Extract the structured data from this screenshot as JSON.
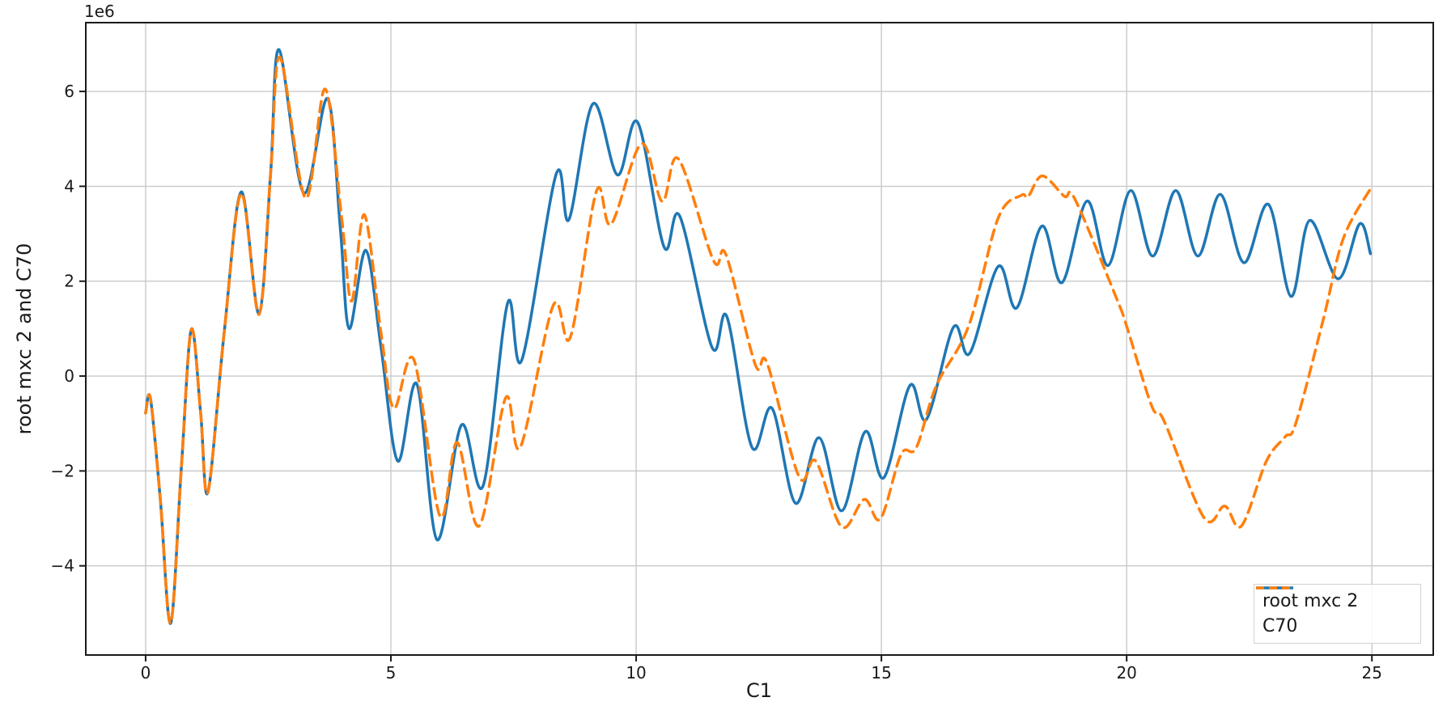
{
  "figure": {
    "background": "#ffffff",
    "text_color": "#1a1a1a",
    "grid_color": "#c9c9c9",
    "spine_color": "#1a1a1a"
  },
  "chart_data": {
    "type": "line",
    "title": "",
    "xlabel": "C1",
    "ylabel": "root mxc 2 and C70",
    "y_offset_label": "1e6",
    "y_scale": 1000000,
    "xlim": [
      -1.22,
      26.25
    ],
    "ylim": [
      -5.88,
      7.45
    ],
    "x_ticks": [
      0,
      5,
      10,
      15,
      20,
      25
    ],
    "y_ticks": [
      -4,
      -2,
      0,
      2,
      4,
      6
    ],
    "grid": true,
    "legend_position": "lower right",
    "series": [
      {
        "name": "root mxc 2",
        "color": "#1f77b4",
        "style": "solid",
        "points": [
          [
            0.0,
            -0.78
          ],
          [
            0.1,
            -0.48
          ],
          [
            0.3,
            -2.6
          ],
          [
            0.51,
            -5.21
          ],
          [
            0.73,
            -1.9
          ],
          [
            0.93,
            0.98
          ],
          [
            1.12,
            -0.75
          ],
          [
            1.27,
            -2.45
          ],
          [
            1.6,
            0.9
          ],
          [
            1.95,
            3.88
          ],
          [
            2.31,
            1.32
          ],
          [
            2.55,
            4.3
          ],
          [
            2.72,
            6.88
          ],
          [
            3.22,
            3.86
          ],
          [
            3.71,
            5.85
          ],
          [
            3.97,
            3.1
          ],
          [
            4.15,
            1.0
          ],
          [
            4.49,
            2.65
          ],
          [
            4.8,
            0.6
          ],
          [
            5.14,
            -1.79
          ],
          [
            5.53,
            -0.17
          ],
          [
            5.94,
            -3.45
          ],
          [
            6.44,
            -1.03
          ],
          [
            6.88,
            -2.31
          ],
          [
            7.38,
            1.54
          ],
          [
            7.67,
            0.34
          ],
          [
            8.37,
            4.26
          ],
          [
            8.63,
            3.3
          ],
          [
            9.12,
            5.74
          ],
          [
            9.62,
            4.24
          ],
          [
            10.03,
            5.35
          ],
          [
            10.57,
            2.72
          ],
          [
            10.89,
            3.37
          ],
          [
            11.55,
            0.6
          ],
          [
            11.85,
            1.25
          ],
          [
            12.36,
            -1.5
          ],
          [
            12.77,
            -0.68
          ],
          [
            13.25,
            -2.68
          ],
          [
            13.73,
            -1.3
          ],
          [
            14.19,
            -2.84
          ],
          [
            14.67,
            -1.17
          ],
          [
            15.05,
            -2.14
          ],
          [
            15.58,
            -0.2
          ],
          [
            15.92,
            -0.91
          ],
          [
            16.47,
            1.03
          ],
          [
            16.8,
            0.48
          ],
          [
            17.38,
            2.31
          ],
          [
            17.76,
            1.44
          ],
          [
            18.27,
            3.16
          ],
          [
            18.68,
            1.97
          ],
          [
            19.19,
            3.69
          ],
          [
            19.62,
            2.33
          ],
          [
            20.08,
            3.91
          ],
          [
            20.53,
            2.53
          ],
          [
            21.0,
            3.91
          ],
          [
            21.45,
            2.53
          ],
          [
            21.91,
            3.83
          ],
          [
            22.39,
            2.39
          ],
          [
            22.89,
            3.62
          ],
          [
            23.35,
            1.68
          ],
          [
            23.73,
            3.28
          ],
          [
            24.31,
            2.05
          ],
          [
            24.75,
            3.21
          ],
          [
            24.97,
            2.58
          ]
        ]
      },
      {
        "name": "C70",
        "color": "#ff7f0e",
        "style": "dashed",
        "points": [
          [
            0.0,
            -0.78
          ],
          [
            0.1,
            -0.48
          ],
          [
            0.3,
            -2.6
          ],
          [
            0.51,
            -5.21
          ],
          [
            0.73,
            -1.9
          ],
          [
            0.93,
            0.98
          ],
          [
            1.12,
            -0.75
          ],
          [
            1.27,
            -2.45
          ],
          [
            1.6,
            0.9
          ],
          [
            1.95,
            3.85
          ],
          [
            2.31,
            1.3
          ],
          [
            2.55,
            4.3
          ],
          [
            2.74,
            6.72
          ],
          [
            3.26,
            3.75
          ],
          [
            3.66,
            6.05
          ],
          [
            4.0,
            3.3
          ],
          [
            4.2,
            1.58
          ],
          [
            4.46,
            3.4
          ],
          [
            4.8,
            0.9
          ],
          [
            5.06,
            -0.68
          ],
          [
            5.47,
            0.34
          ],
          [
            6.0,
            -2.95
          ],
          [
            6.35,
            -1.4
          ],
          [
            6.8,
            -3.16
          ],
          [
            7.34,
            -0.46
          ],
          [
            7.64,
            -1.5
          ],
          [
            8.31,
            1.49
          ],
          [
            8.66,
            0.82
          ],
          [
            9.19,
            3.9
          ],
          [
            9.49,
            3.2
          ],
          [
            10.11,
            4.9
          ],
          [
            10.53,
            3.68
          ],
          [
            10.86,
            4.58
          ],
          [
            11.58,
            2.43
          ],
          [
            11.83,
            2.56
          ],
          [
            12.43,
            0.24
          ],
          [
            12.67,
            0.27
          ],
          [
            13.32,
            -2.12
          ],
          [
            13.66,
            -1.79
          ],
          [
            14.19,
            -3.18
          ],
          [
            14.65,
            -2.6
          ],
          [
            14.98,
            -3.01
          ],
          [
            15.4,
            -1.65
          ],
          [
            15.71,
            -1.51
          ],
          [
            16.12,
            -0.2
          ],
          [
            16.78,
            1.06
          ],
          [
            17.38,
            3.33
          ],
          [
            17.85,
            3.81
          ],
          [
            17.99,
            3.78
          ],
          [
            18.28,
            4.22
          ],
          [
            18.73,
            3.79
          ],
          [
            18.95,
            3.72
          ],
          [
            19.8,
            1.62
          ],
          [
            20.0,
            1.05
          ],
          [
            20.51,
            -0.63
          ],
          [
            20.76,
            -0.94
          ],
          [
            21.58,
            -2.99
          ],
          [
            22.0,
            -2.74
          ],
          [
            22.34,
            -3.16
          ],
          [
            22.85,
            -1.79
          ],
          [
            23.23,
            -1.28
          ],
          [
            23.45,
            -0.99
          ],
          [
            24.01,
            1.2
          ],
          [
            24.42,
            2.91
          ],
          [
            25.0,
            4.0
          ]
        ]
      }
    ]
  }
}
